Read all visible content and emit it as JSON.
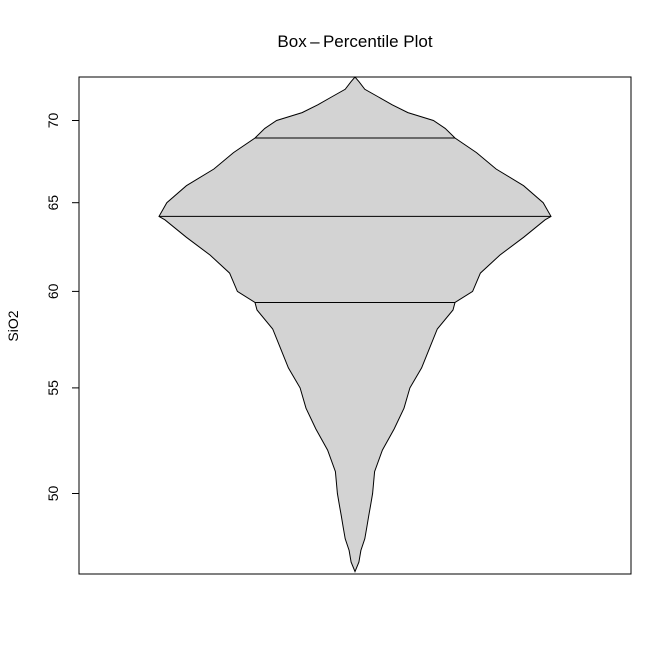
{
  "chart_data": {
    "type": "box-percentile",
    "title": "Box – Percentile Plot",
    "xlabel": "",
    "ylabel": "SiO2",
    "ylim": [
      46.5,
      72.8
    ],
    "yscale": "log",
    "y_ticks": [
      50,
      55,
      60,
      65,
      70
    ],
    "y_tick_labels": [
      "50",
      "55",
      "60",
      "65",
      "70"
    ],
    "grid": false,
    "fill_color": "#d3d3d3",
    "reference_lines": [
      {
        "name": "upper quartile",
        "value": 68.9
      },
      {
        "name": "median",
        "value": 64.2
      },
      {
        "name": "lower quartile",
        "value": 59.4
      }
    ],
    "profile": [
      {
        "y": 46.6,
        "w": 0.0
      },
      {
        "y": 47.0,
        "w": 0.02
      },
      {
        "y": 47.5,
        "w": 0.03
      },
      {
        "y": 48.0,
        "w": 0.05
      },
      {
        "y": 48.5,
        "w": 0.06
      },
      {
        "y": 49.0,
        "w": 0.07
      },
      {
        "y": 49.5,
        "w": 0.08
      },
      {
        "y": 50.0,
        "w": 0.09
      },
      {
        "y": 51.0,
        "w": 0.1
      },
      {
        "y": 52.0,
        "w": 0.14
      },
      {
        "y": 53.0,
        "w": 0.2
      },
      {
        "y": 54.0,
        "w": 0.25
      },
      {
        "y": 55.0,
        "w": 0.28
      },
      {
        "y": 56.0,
        "w": 0.34
      },
      {
        "y": 57.0,
        "w": 0.38
      },
      {
        "y": 58.0,
        "w": 0.42
      },
      {
        "y": 59.0,
        "w": 0.5
      },
      {
        "y": 59.4,
        "w": 0.51
      },
      {
        "y": 60.0,
        "w": 0.6
      },
      {
        "y": 61.0,
        "w": 0.64
      },
      {
        "y": 62.0,
        "w": 0.74
      },
      {
        "y": 63.0,
        "w": 0.86
      },
      {
        "y": 64.0,
        "w": 0.97
      },
      {
        "y": 64.2,
        "w": 1.0
      },
      {
        "y": 65.0,
        "w": 0.96
      },
      {
        "y": 66.0,
        "w": 0.86
      },
      {
        "y": 67.0,
        "w": 0.72
      },
      {
        "y": 68.0,
        "w": 0.62
      },
      {
        "y": 68.9,
        "w": 0.51
      },
      {
        "y": 69.5,
        "w": 0.46
      },
      {
        "y": 70.0,
        "w": 0.4
      },
      {
        "y": 70.5,
        "w": 0.27
      },
      {
        "y": 71.0,
        "w": 0.19
      },
      {
        "y": 71.5,
        "w": 0.12
      },
      {
        "y": 72.0,
        "w": 0.05
      },
      {
        "y": 72.5,
        "w": 0.02
      },
      {
        "y": 72.8,
        "w": 0.0
      }
    ]
  }
}
